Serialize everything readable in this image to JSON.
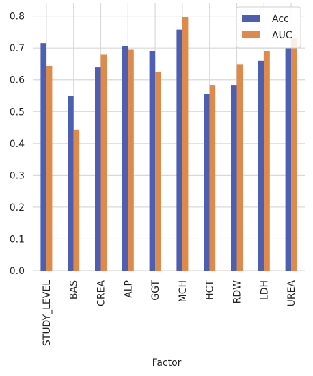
{
  "chart_data": {
    "type": "bar",
    "title": "",
    "xlabel": "Factor",
    "ylabel": "",
    "categories": [
      "STUDY_LEVEL",
      "BAS",
      "CREA",
      "ALP",
      "GGT",
      "MCH",
      "HCT",
      "RDW",
      "LDH",
      "UREA"
    ],
    "series": [
      {
        "name": "Acc",
        "color": "#4c5fb3",
        "values": [
          0.715,
          0.55,
          0.64,
          0.705,
          0.69,
          0.757,
          0.555,
          0.582,
          0.66,
          0.7
        ]
      },
      {
        "name": "AUC",
        "color": "#dd8a4a",
        "values": [
          0.643,
          0.443,
          0.68,
          0.695,
          0.625,
          0.797,
          0.582,
          0.648,
          0.69,
          0.73
        ]
      }
    ],
    "ylim": [
      0,
      0.84
    ],
    "yticks": [
      "0.0",
      "0.1",
      "0.2",
      "0.3",
      "0.4",
      "0.5",
      "0.6",
      "0.7",
      "0.8"
    ],
    "grid": true,
    "legend_position": "top-right"
  }
}
